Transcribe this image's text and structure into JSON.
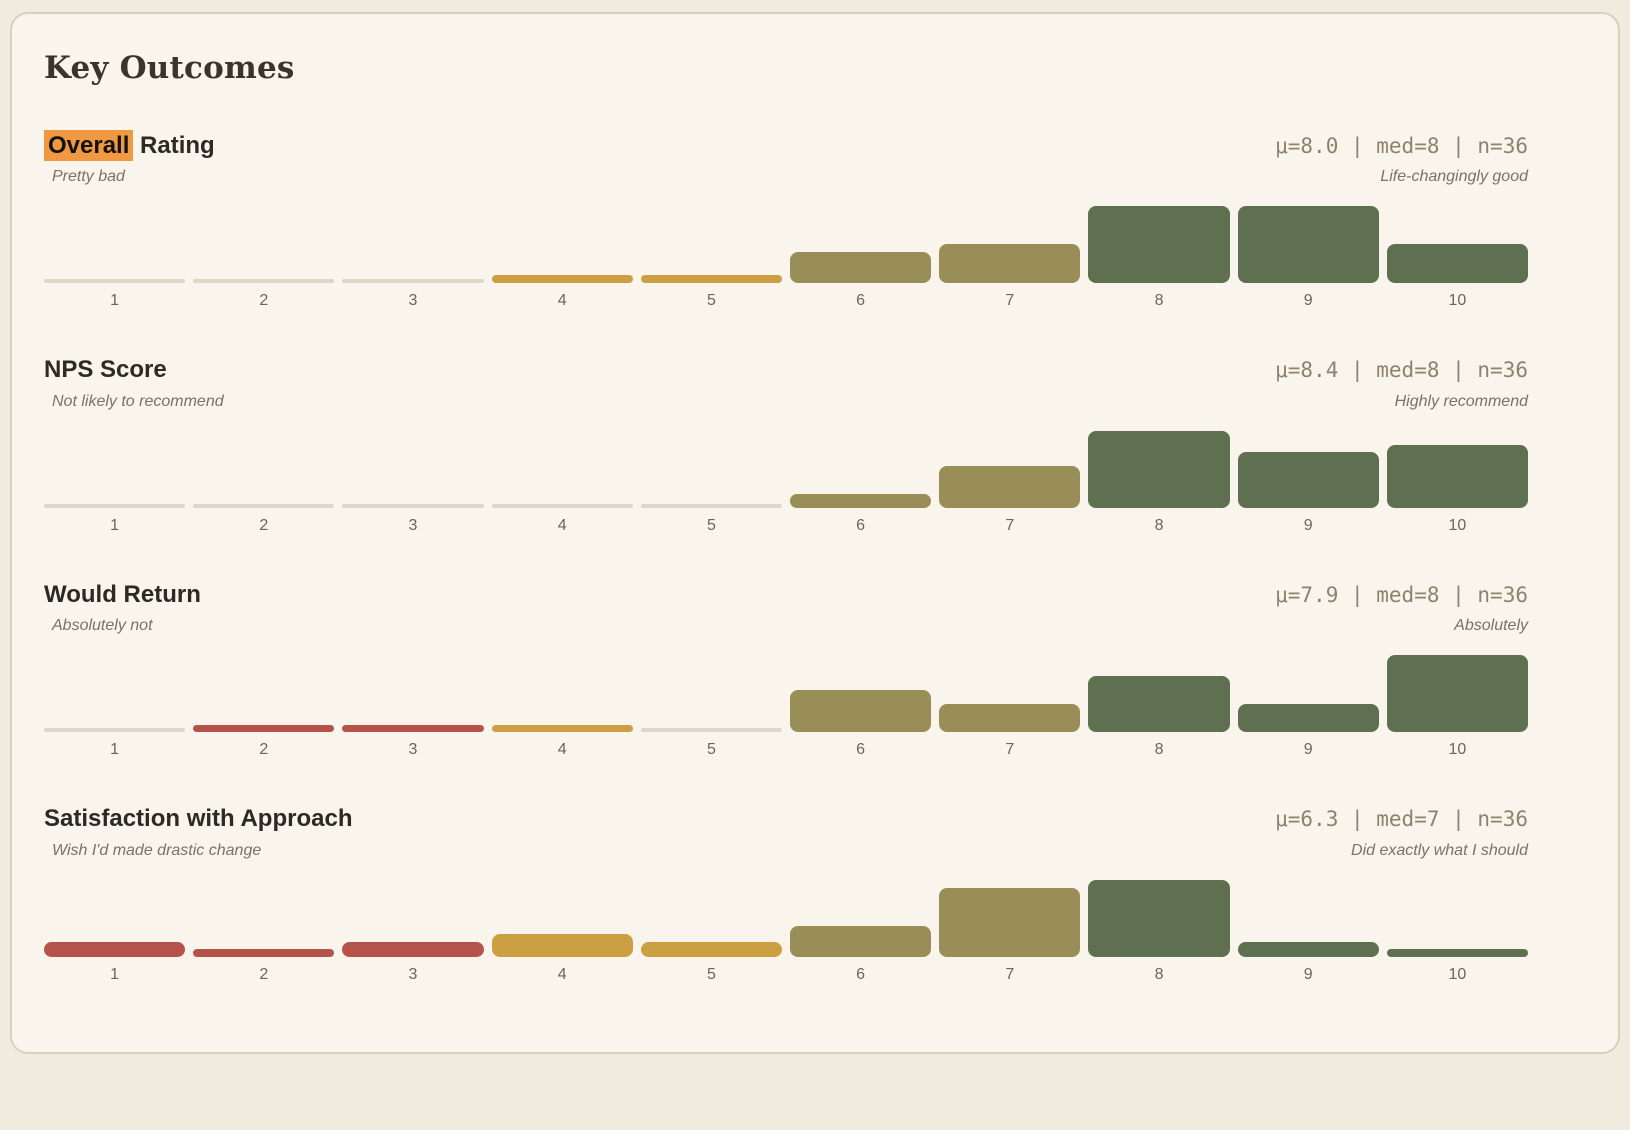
{
  "page": {
    "title": "Key Outcomes"
  },
  "colors": {
    "page_bg": "#f1ebdf",
    "card_bg": "#f9f5ec",
    "card_border": "#d6d0c0",
    "title": "#3a342b",
    "chart_title": "#2d2923",
    "highlight_bg": "#ef9a42",
    "highlight_text": "#141210",
    "stats": "#8e816d",
    "subtitle": "#7c7163",
    "axis_label": "#6e6458",
    "zero_bar": "#ddd7c7",
    "bar_red": "#b5534a",
    "bar_gold": "#cc9f43",
    "bar_olive": "#998e57",
    "bar_green": "#5f7050"
  },
  "chart_data": [
    {
      "type": "bar",
      "title": "Overall Rating",
      "title_highlight": "Overall",
      "title_rest": " Rating",
      "stats_text": "μ=8.0 | med=8 | n=36",
      "mean": 8.0,
      "median": 8,
      "n": 36,
      "left_label": "Pretty bad",
      "right_label": "Life-changingly good",
      "categories": [
        1,
        2,
        3,
        4,
        5,
        6,
        7,
        8,
        9,
        10
      ],
      "values": [
        0,
        0,
        0,
        1,
        1,
        4,
        5,
        10,
        10,
        5
      ],
      "xlabel": "",
      "ylabel": "",
      "legend": "none",
      "grid": "off"
    },
    {
      "type": "bar",
      "title": "NPS Score",
      "title_highlight": "",
      "title_rest": "NPS Score",
      "stats_text": "μ=8.4 | med=8 | n=36",
      "mean": 8.4,
      "median": 8,
      "n": 36,
      "left_label": "Not likely to recommend",
      "right_label": "Highly recommend",
      "categories": [
        1,
        2,
        3,
        4,
        5,
        6,
        7,
        8,
        9,
        10
      ],
      "values": [
        0,
        0,
        0,
        0,
        0,
        2,
        6,
        11,
        8,
        9
      ],
      "xlabel": "",
      "ylabel": "",
      "legend": "none",
      "grid": "off"
    },
    {
      "type": "bar",
      "title": "Would Return",
      "title_highlight": "",
      "title_rest": "Would Return",
      "stats_text": "μ=7.9 | med=8 | n=36",
      "mean": 7.9,
      "median": 8,
      "n": 36,
      "left_label": "Absolutely not",
      "right_label": "Absolutely",
      "categories": [
        1,
        2,
        3,
        4,
        5,
        6,
        7,
        8,
        9,
        10
      ],
      "values": [
        0,
        1,
        1,
        1,
        0,
        6,
        4,
        8,
        4,
        11
      ],
      "xlabel": "",
      "ylabel": "",
      "legend": "none",
      "grid": "off"
    },
    {
      "type": "bar",
      "title": "Satisfaction with Approach",
      "title_highlight": "",
      "title_rest": "Satisfaction with Approach",
      "stats_text": "μ=6.3 | med=7 | n=36",
      "mean": 6.3,
      "median": 7,
      "n": 36,
      "left_label": "Wish I'd made drastic change",
      "right_label": "Did exactly what I should",
      "categories": [
        1,
        2,
        3,
        4,
        5,
        6,
        7,
        8,
        9,
        10
      ],
      "values": [
        2,
        1,
        2,
        3,
        2,
        4,
        9,
        10,
        2,
        1
      ],
      "xlabel": "",
      "ylabel": "",
      "legend": "none",
      "grid": "off"
    }
  ],
  "bar_color_rule": {
    "ratings_1_3": "bar_red",
    "ratings_4_5": "bar_gold",
    "ratings_6_7": "bar_olive",
    "ratings_8_10": "bar_green",
    "zero_count": "zero_bar"
  }
}
